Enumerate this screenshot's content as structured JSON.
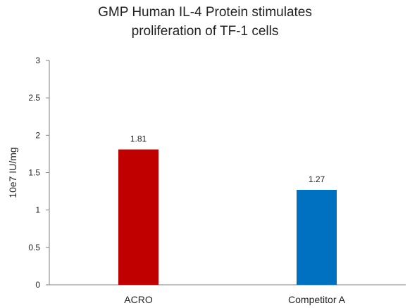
{
  "chart_data": {
    "type": "bar",
    "title_lines": [
      "GMP Human IL-4 Protein stimulates",
      "proliferation of TF-1 cells"
    ],
    "xlabel": "",
    "ylabel": "10e7 IU/mg",
    "categories": [
      "ACRO",
      "Competitor A"
    ],
    "values": [
      1.81,
      1.27
    ],
    "data_labels": [
      "1.81",
      "1.27"
    ],
    "bar_colors": [
      "#C00000",
      "#0070C0"
    ],
    "ylim": [
      0,
      3
    ],
    "yticks": [
      0,
      0.5,
      1,
      1.5,
      2,
      2.5,
      3
    ],
    "ytick_labels": [
      "0",
      "0.5",
      "1",
      "1.5",
      "2",
      "2.5",
      "3"
    ],
    "grid": false,
    "legend": "none"
  }
}
